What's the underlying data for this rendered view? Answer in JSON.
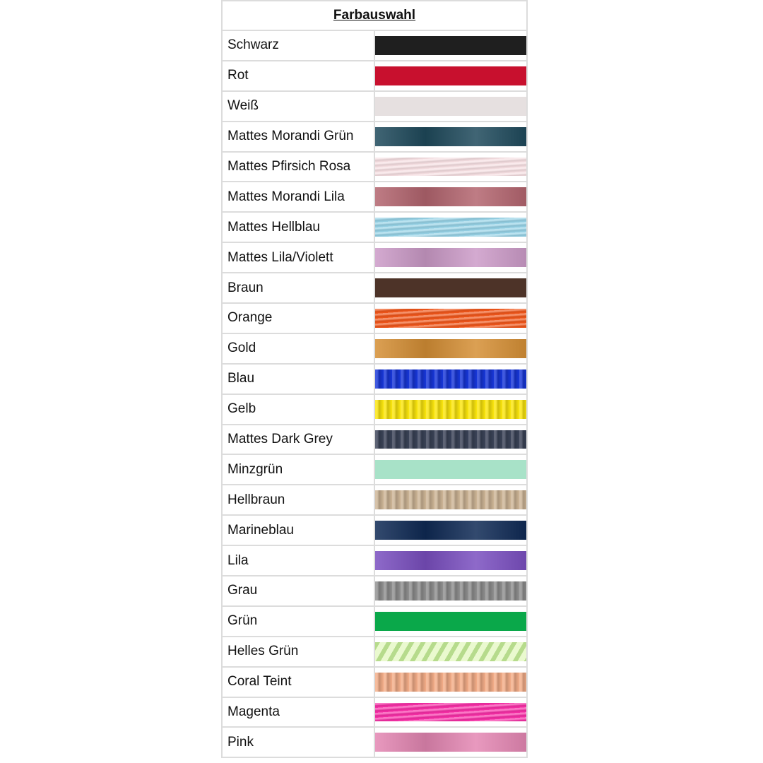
{
  "title": "Farbauswahl",
  "colors": [
    {
      "name": "Schwarz",
      "hex": "#1f1f1f",
      "texture": "none"
    },
    {
      "name": "Rot",
      "hex": "#c8102e",
      "texture": "none"
    },
    {
      "name": "Weiß",
      "hex": "#e6e0e0",
      "texture": "none"
    },
    {
      "name": "Mattes Morandi Grün",
      "hex": "#1f4a5c",
      "texture": "sheen"
    },
    {
      "name": "Mattes Pfirsich Rosa",
      "hex": "#f6dfe2",
      "texture": "horizontal"
    },
    {
      "name": "Mattes Morandi Lila",
      "hex": "#b3656f",
      "texture": "sheen"
    },
    {
      "name": "Mattes Hellblau",
      "hex": "#96d2e6",
      "texture": "horizontal"
    },
    {
      "name": "Mattes Lila/Violett",
      "hex": "#cc9bc8",
      "texture": "sheen"
    },
    {
      "name": "Braun",
      "hex": "#4d3328",
      "texture": "none"
    },
    {
      "name": "Orange",
      "hex": "#f0561a",
      "texture": "horizontal"
    },
    {
      "name": "Gold",
      "hex": "#d58f35",
      "texture": "sheen"
    },
    {
      "name": "Blau",
      "hex": "#1736d8",
      "texture": "vertical"
    },
    {
      "name": "Gelb",
      "hex": "#fbe60d",
      "texture": "vertical"
    },
    {
      "name": "Mattes Dark Grey",
      "hex": "#3a4257",
      "texture": "vertical"
    },
    {
      "name": "Minzgrün",
      "hex": "#a8e2c8",
      "texture": "none"
    },
    {
      "name": "Hellbraun",
      "hex": "#cdb596",
      "texture": "vertical"
    },
    {
      "name": "Marineblau",
      "hex": "#0f2a55",
      "texture": "sheen"
    },
    {
      "name": "Lila",
      "hex": "#7a4fc0",
      "texture": "sheen"
    },
    {
      "name": "Grau",
      "hex": "#8f8f8f",
      "texture": "vertical"
    },
    {
      "name": "Grün",
      "hex": "#0aa84a",
      "texture": "none"
    },
    {
      "name": "Helles Grün",
      "hex": "#d8f5b4",
      "texture": "diagonal"
    },
    {
      "name": "Coral Teint",
      "hex": "#f3ad88",
      "texture": "vertical"
    },
    {
      "name": "Magenta",
      "hex": "#f72ea6",
      "texture": "horizontal"
    },
    {
      "name": "Pink",
      "hex": "#e487b3",
      "texture": "sheen"
    }
  ]
}
